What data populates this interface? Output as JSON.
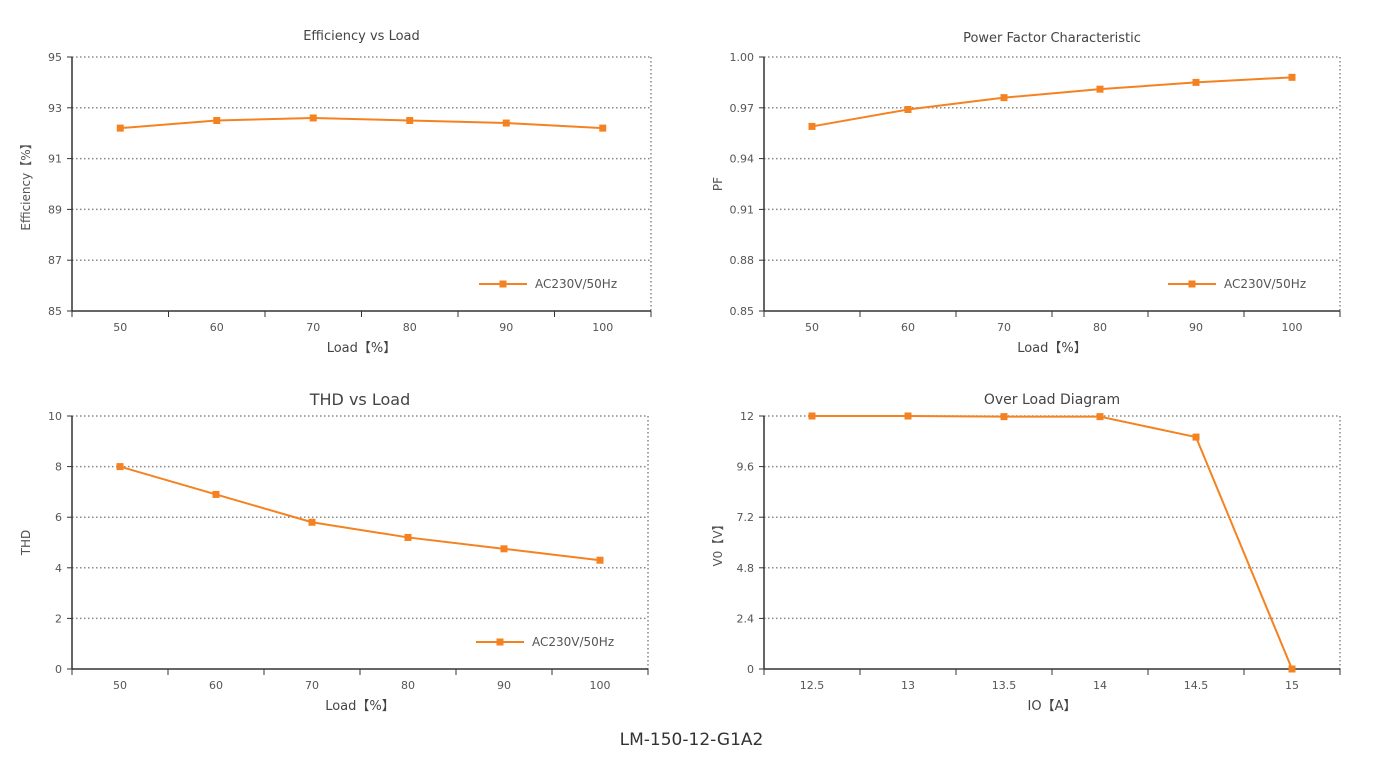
{
  "page": {
    "caption": "LM-150-12-G1A2",
    "colors": {
      "series": "#f58220",
      "axis": "#333333",
      "grid": "#888888",
      "text": "#555555"
    }
  },
  "chart_data": [
    {
      "type": "line",
      "title": "Efficiency vs Load",
      "xlabel": "Load【%】",
      "ylabel": "Efficiency【%】",
      "categories": [
        "50",
        "60",
        "70",
        "80",
        "90",
        "100"
      ],
      "yticks": [
        "85",
        "87",
        "89",
        "91",
        "93",
        "95"
      ],
      "ylim": [
        85,
        95
      ],
      "grid": true,
      "legend_position": "bottom-right",
      "series": [
        {
          "name": "AC230V/50Hz",
          "values": [
            92.2,
            92.5,
            92.6,
            92.5,
            92.4,
            92.2
          ]
        }
      ]
    },
    {
      "type": "line",
      "title": "Power Factor Characteristic",
      "xlabel": "Load【%】",
      "ylabel": "PF",
      "categories": [
        "50",
        "60",
        "70",
        "80",
        "90",
        "100"
      ],
      "yticks": [
        "0.85",
        "0.88",
        "0.91",
        "0.94",
        "0.97",
        "1.00"
      ],
      "ylim": [
        0.85,
        1.0
      ],
      "grid": true,
      "legend_position": "bottom-right",
      "series": [
        {
          "name": "AC230V/50Hz",
          "values": [
            0.959,
            0.969,
            0.976,
            0.981,
            0.985,
            0.988
          ]
        }
      ]
    },
    {
      "type": "line",
      "title": "THD vs Load",
      "xlabel": "Load【%】",
      "ylabel": "THD",
      "categories": [
        "50",
        "60",
        "70",
        "80",
        "90",
        "100"
      ],
      "yticks": [
        "0",
        "2",
        "4",
        "6",
        "8",
        "10"
      ],
      "ylim": [
        0,
        10
      ],
      "grid": true,
      "legend_position": "bottom-right",
      "series": [
        {
          "name": "AC230V/50Hz",
          "values": [
            8.0,
            6.9,
            5.8,
            5.2,
            4.75,
            4.3
          ]
        }
      ]
    },
    {
      "type": "line",
      "title": "Over Load Diagram",
      "xlabel": "IO【A】",
      "ylabel": "V0【V】",
      "categories": [
        "12.5",
        "13",
        "13.5",
        "14",
        "14.5",
        "15"
      ],
      "yticks": [
        "0",
        "2.4",
        "4.8",
        "7.2",
        "9.6",
        "12"
      ],
      "ylim": [
        0,
        12
      ],
      "grid": true,
      "series": [
        {
          "values": [
            12.0,
            12.0,
            11.97,
            11.97,
            11.0,
            0
          ]
        }
      ]
    }
  ]
}
